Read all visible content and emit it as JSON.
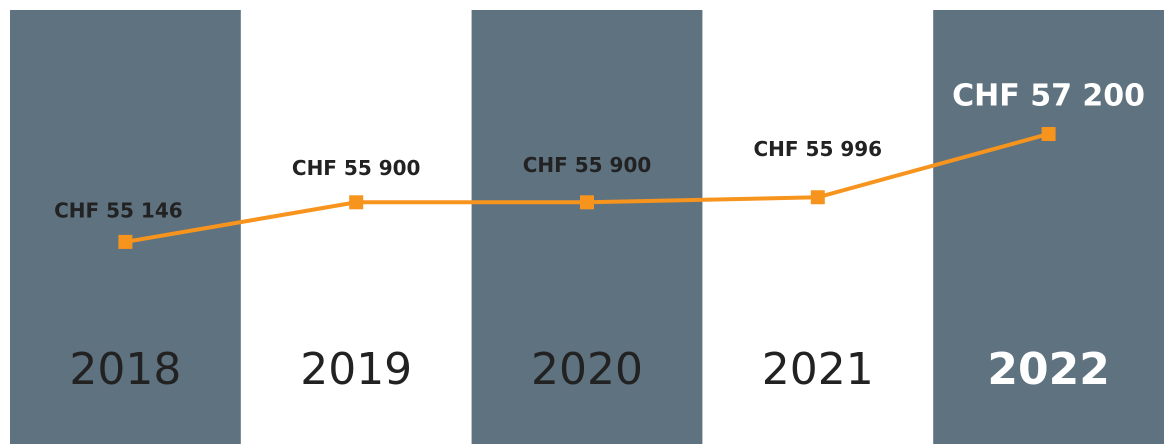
{
  "chart_data": {
    "type": "line",
    "categories": [
      "2018",
      "2019",
      "2020",
      "2021",
      "2022"
    ],
    "series": [
      {
        "color": "#f7941d",
        "values": [
          55146,
          55900,
          55900,
          55996,
          57200
        ],
        "value_labels": [
          "CHF 55 146",
          "CHF 55 900",
          "CHF 55 900",
          "CHF 55 996",
          "CHF 57 200"
        ]
      }
    ],
    "ylim": [
      51300,
      59750
    ],
    "band_color": "#5f7280"
  }
}
